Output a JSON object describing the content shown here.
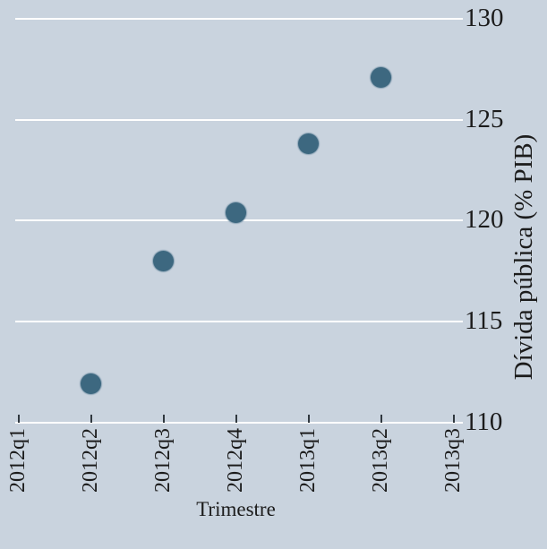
{
  "chart_data": {
    "type": "scatter",
    "title": "",
    "xlabel": "Trimestre",
    "ylabel": "Dívida pública (% PIB)",
    "x_categories": [
      "2012q1",
      "2012q2",
      "2012q3",
      "2012q4",
      "2013q1",
      "2013q2",
      "2013q3"
    ],
    "points": [
      {
        "x": "2012q2",
        "y": 111.9
      },
      {
        "x": "2012q3",
        "y": 118.0
      },
      {
        "x": "2012q4",
        "y": 120.4
      },
      {
        "x": "2013q1",
        "y": 123.8
      },
      {
        "x": "2013q2",
        "y": 127.1
      }
    ],
    "y_ticks": [
      110,
      115,
      120,
      125,
      130
    ],
    "ylim": [
      110,
      130
    ],
    "grid": "horizontal-white-gridlines",
    "legend_position": "none",
    "y_axis_side": "right",
    "x_tick_label_rotation": "vertical-bottom-to-top",
    "colors": {
      "background": "#C9D3DE",
      "gridline": "#FFFFFF",
      "marker": "#3D6880",
      "text": "#1B1B1B",
      "x_tick_mark": "#30383F"
    }
  }
}
